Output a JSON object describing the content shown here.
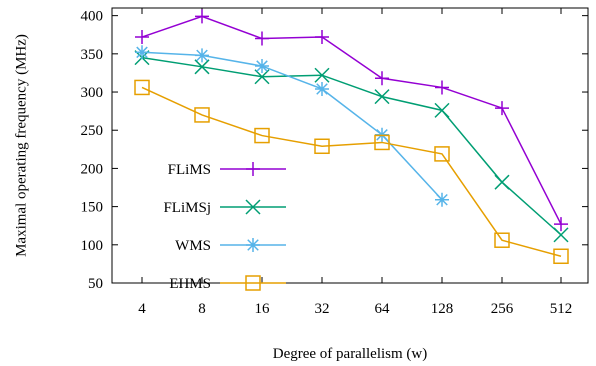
{
  "chart_data": {
    "type": "line",
    "xlabel": "Degree of parallelism (w)",
    "ylabel": "Maximal operating frequency (MHz)",
    "categories": [
      "4",
      "8",
      "16",
      "32",
      "64",
      "128",
      "256",
      "512"
    ],
    "ylim": [
      50,
      410
    ],
    "yticks": [
      50,
      100,
      150,
      200,
      250,
      300,
      350,
      400
    ],
    "grid": false,
    "legend_position": "center-left",
    "series": [
      {
        "name": "FLiMS",
        "color": "#9400d3",
        "marker": "plus",
        "values": [
          372,
          399,
          370,
          372,
          318,
          306,
          279,
          127
        ]
      },
      {
        "name": "FLiMSj",
        "color": "#009e73",
        "marker": "cross",
        "values": [
          345,
          333,
          320,
          322,
          294,
          276,
          182,
          113
        ]
      },
      {
        "name": "WMS",
        "color": "#56b4e9",
        "marker": "star",
        "values": [
          352,
          348,
          334,
          304,
          244,
          159,
          null,
          null
        ]
      },
      {
        "name": "EHMS",
        "color": "#e69f00",
        "marker": "square",
        "values": [
          306,
          270,
          243,
          229,
          234,
          219,
          106,
          85
        ]
      }
    ]
  }
}
